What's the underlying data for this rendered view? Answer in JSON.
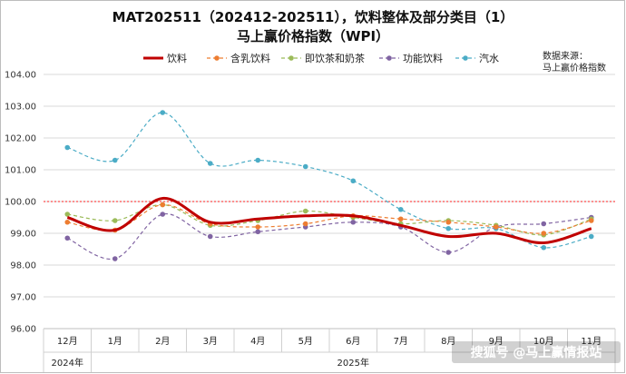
{
  "chart_data": {
    "type": "line",
    "title_line1": "MAT202511（202412-202511），饮料整体及部分类目（1）",
    "title_line2": "马上赢价格指数（WPI）",
    "source_line1": "数据来源：",
    "source_line2": "马上赢价格指数",
    "categories": [
      "12月",
      "1月",
      "2月",
      "3月",
      "4月",
      "5月",
      "6月",
      "7月",
      "8月",
      "9月",
      "10月",
      "11月"
    ],
    "year_labels": [
      {
        "label": "2024年",
        "from": 0,
        "to": 0
      },
      {
        "label": "2025年",
        "from": 1,
        "to": 11
      }
    ],
    "ylim": [
      96,
      104
    ],
    "yticks": [
      96,
      97,
      98,
      99,
      100,
      101,
      102,
      103,
      104
    ],
    "ytick_labels": [
      "96.00",
      "97.00",
      "98.00",
      "99.00",
      "100.00",
      "101.00",
      "102.00",
      "103.00",
      "104.00"
    ],
    "reference_line": {
      "value": 100,
      "color": "#ff4d4d"
    },
    "series": [
      {
        "name": "饮料",
        "color": "#c00000",
        "style": "solid",
        "markers": false,
        "values": [
          99.5,
          99.1,
          100.1,
          99.35,
          99.45,
          99.55,
          99.55,
          99.25,
          98.9,
          99.0,
          98.7,
          99.15
        ]
      },
      {
        "name": "含乳饮料",
        "color": "#ed7d31",
        "style": "dashed",
        "markers": true,
        "values": [
          99.35,
          99.1,
          99.9,
          99.3,
          99.2,
          99.3,
          99.55,
          99.45,
          99.35,
          99.2,
          99.0,
          99.4
        ]
      },
      {
        "name": "即饮茶和奶茶",
        "color": "#9bbb59",
        "style": "dashed",
        "markers": true,
        "values": [
          99.6,
          99.4,
          99.9,
          99.25,
          99.4,
          99.7,
          99.5,
          99.3,
          99.4,
          99.25,
          98.95,
          99.45
        ]
      },
      {
        "name": "功能饮料",
        "color": "#8064a2",
        "style": "dashed",
        "markers": true,
        "values": [
          98.85,
          98.2,
          99.6,
          98.9,
          99.05,
          99.2,
          99.35,
          99.2,
          98.4,
          99.2,
          99.3,
          99.5
        ]
      },
      {
        "name": "汽水",
        "color": "#4bacc6",
        "style": "dashed",
        "markers": true,
        "values": [
          101.7,
          101.3,
          102.8,
          101.2,
          101.3,
          101.1,
          100.65,
          99.75,
          99.15,
          99.15,
          98.55,
          98.9
        ]
      }
    ],
    "legend_position": "top",
    "grid": "horizontal"
  },
  "watermark": "搜狐号 @马上赢情报站"
}
